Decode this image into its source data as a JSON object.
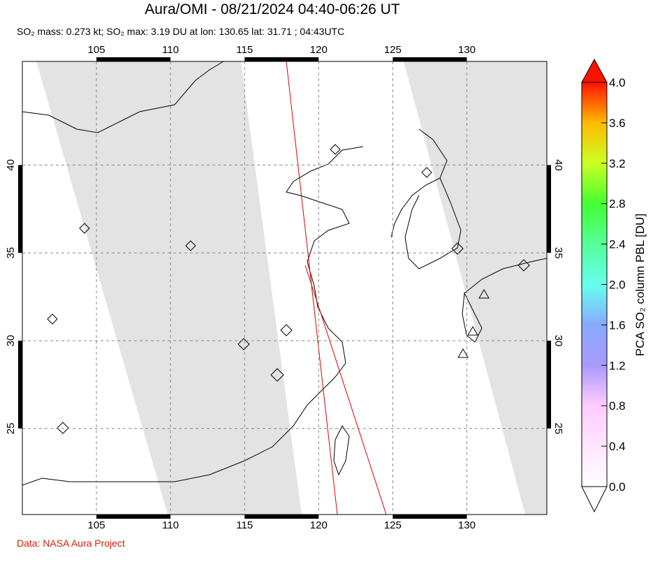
{
  "chart_data": {
    "type": "map",
    "title": "Aura/OMI - 08/21/2024 04:40-06:26 UT",
    "subtitle": "SO₂ mass: 0.273 kt; SO₂ max: 3.19 DU at lon: 130.65 lat: 31.71 ; 04:43UTC",
    "xlim": [
      100,
      135.4
    ],
    "ylim": [
      20.1,
      45.9
    ],
    "xticks": [
      105,
      110,
      115,
      120,
      125,
      130
    ],
    "yticks": [
      25,
      30,
      35,
      40
    ],
    "grid": true,
    "colorbar": {
      "label": "PCA SO₂ column PBL [DU]",
      "lim": [
        0,
        4
      ],
      "ticks": [
        {
          "value": 0,
          "label": "0.0"
        },
        {
          "value": 0.4,
          "label": "0.4"
        },
        {
          "value": 0.8,
          "label": "0.8"
        },
        {
          "value": 1.2,
          "label": "1.2"
        },
        {
          "value": 1.6,
          "label": "1.6"
        },
        {
          "value": 2,
          "label": "2.0"
        },
        {
          "value": 2.4,
          "label": "2.4"
        },
        {
          "value": 2.8,
          "label": "2.8"
        },
        {
          "value": 3.2,
          "label": "3.2"
        },
        {
          "value": 3.6,
          "label": "3.6"
        },
        {
          "value": 4,
          "label": "4.0"
        }
      ]
    },
    "footer": "Data: NASA Aura Project"
  }
}
